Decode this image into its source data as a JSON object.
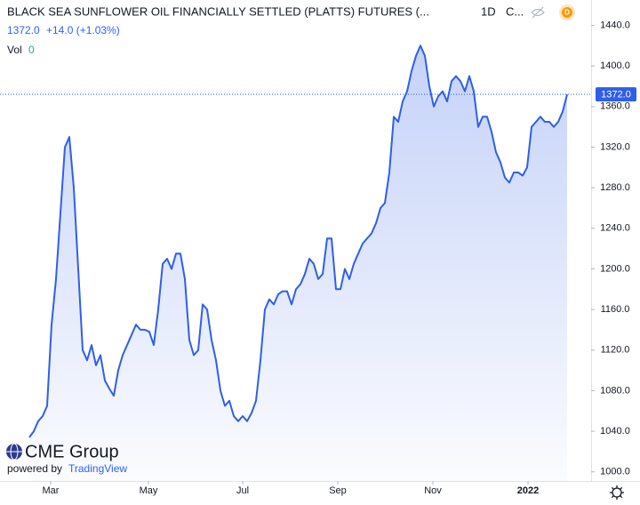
{
  "chart_data": {
    "type": "area",
    "title": "BLACK SEA SUNFLOWER OIL FINANCIALLY SETTLED (PLATTS) FUTURES (...",
    "interval": "1D",
    "title_suffix": "C...",
    "quote": "1372.0",
    "change": "+14.0 (+1.03%)",
    "volume_label": "Vol",
    "volume": "0",
    "logo": "CME Group",
    "powered_by": "powered by",
    "brand": "TradingView",
    "color": "#2f5fe8",
    "x": [
      0,
      1,
      2,
      3,
      4,
      5,
      6,
      7,
      8,
      9,
      10,
      11,
      12,
      13,
      14,
      15,
      16,
      17,
      18,
      19,
      20,
      21,
      22,
      23,
      24,
      25,
      26,
      27,
      28,
      29,
      30,
      31,
      32,
      33,
      34,
      35,
      36,
      37,
      38,
      39,
      40,
      41,
      42,
      43,
      44,
      45,
      46,
      47,
      48,
      49,
      50,
      51,
      52,
      53,
      54,
      55,
      56,
      57,
      58,
      59,
      60,
      61,
      62,
      63,
      64,
      65,
      66,
      67,
      68,
      69,
      70,
      71,
      72,
      73,
      74,
      75,
      76,
      77,
      78,
      79,
      80,
      81,
      82,
      83,
      84,
      85,
      86,
      87,
      88,
      89,
      90,
      91,
      92,
      93,
      94,
      95,
      96,
      97,
      98,
      99,
      100,
      101,
      102,
      103,
      104,
      105,
      106,
      107,
      108,
      109,
      110,
      111,
      112,
      113,
      114,
      115,
      116,
      117,
      118,
      119,
      120,
      121
    ],
    "values": [
      1034,
      1040,
      1050,
      1055,
      1065,
      1145,
      1190,
      1255,
      1320,
      1330,
      1280,
      1200,
      1120,
      1110,
      1125,
      1105,
      1115,
      1090,
      1082,
      1075,
      1100,
      1115,
      1125,
      1135,
      1145,
      1140,
      1140,
      1138,
      1125,
      1160,
      1205,
      1210,
      1200,
      1215,
      1215,
      1190,
      1130,
      1115,
      1120,
      1165,
      1160,
      1130,
      1110,
      1080,
      1065,
      1070,
      1055,
      1050,
      1055,
      1050,
      1058,
      1070,
      1110,
      1160,
      1170,
      1165,
      1175,
      1178,
      1178,
      1165,
      1180,
      1185,
      1195,
      1210,
      1205,
      1190,
      1195,
      1230,
      1230,
      1180,
      1180,
      1200,
      1190,
      1205,
      1215,
      1225,
      1230,
      1235,
      1245,
      1260,
      1265,
      1295,
      1350,
      1345,
      1365,
      1375,
      1395,
      1410,
      1420,
      1410,
      1380,
      1360,
      1370,
      1375,
      1365,
      1385,
      1390,
      1385,
      1375,
      1390,
      1375,
      1340,
      1350,
      1350,
      1335,
      1315,
      1305,
      1290,
      1285,
      1295,
      1295,
      1292,
      1300,
      1340,
      1345,
      1350,
      1345,
      1345,
      1340,
      1345,
      1355,
      1372
    ],
    "last_price": {
      "value": 1372,
      "label": "1372.0"
    },
    "xlim": [
      -6.6,
      126.4
    ],
    "xticks": [
      {
        "value": 4.8,
        "label": "Mar"
      },
      {
        "value": 26.8,
        "label": "May"
      },
      {
        "value": 48,
        "label": "Jul"
      },
      {
        "value": 69.4,
        "label": "Sep"
      },
      {
        "value": 90.8,
        "label": "Nov"
      },
      {
        "value": 112.2,
        "label": "2022"
      }
    ],
    "ylim": [
      991,
      1465
    ],
    "yticks": [
      {
        "value": 1000,
        "label": "1000.0"
      },
      {
        "value": 1040,
        "label": "1040.0"
      },
      {
        "value": 1080,
        "label": "1080.0"
      },
      {
        "value": 1120,
        "label": "1120.0"
      },
      {
        "value": 1160,
        "label": "1160.0"
      },
      {
        "value": 1200,
        "label": "1200.0"
      },
      {
        "value": 1240,
        "label": "1240.0"
      },
      {
        "value": 1280,
        "label": "1280.0"
      },
      {
        "value": 1320,
        "label": "1320.0"
      },
      {
        "value": 1360,
        "label": "1360.0"
      },
      {
        "value": 1400,
        "label": "1400.0"
      },
      {
        "value": 1440,
        "label": "1440.0"
      }
    ]
  }
}
